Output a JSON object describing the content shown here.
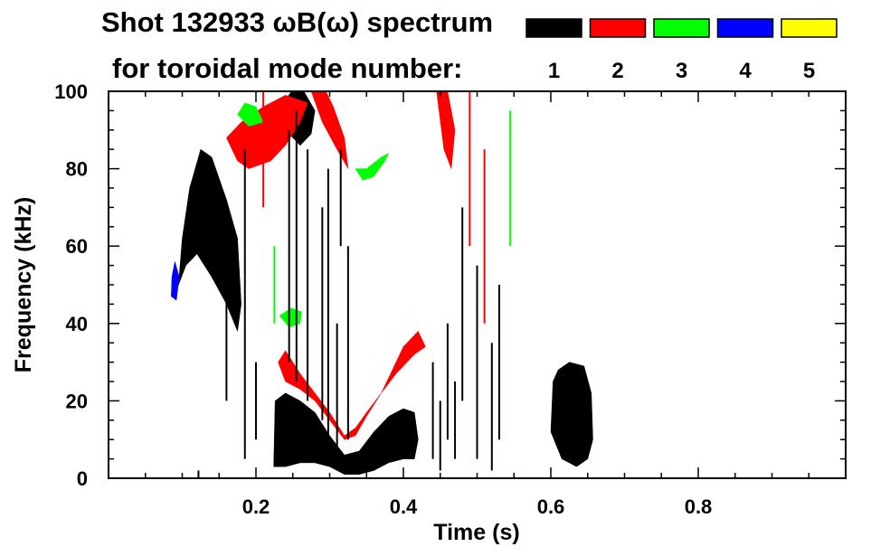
{
  "chart_data": {
    "type": "heatmap",
    "title_line1": "Shot 132933 ωB(ω) spectrum",
    "title_line2": "for toroidal mode number:",
    "xlabel": "Time (s)",
    "ylabel": "Frequency (kHz)",
    "xlim": [
      0,
      1.0
    ],
    "ylim": [
      0,
      100
    ],
    "x_ticks": [
      {
        "value": 0.2,
        "label": "0.2"
      },
      {
        "value": 0.4,
        "label": "0.4"
      },
      {
        "value": 0.6,
        "label": "0.6"
      },
      {
        "value": 0.8,
        "label": "0.8"
      }
    ],
    "y_ticks": [
      {
        "value": 0,
        "label": "0"
      },
      {
        "value": 20,
        "label": "20"
      },
      {
        "value": 40,
        "label": "40"
      },
      {
        "value": 60,
        "label": "60"
      },
      {
        "value": 80,
        "label": "80"
      },
      {
        "value": 100,
        "label": "100"
      }
    ],
    "legend": {
      "placement": "top-right",
      "entries": [
        {
          "label": "1",
          "color": "#000000"
        },
        {
          "label": "2",
          "color": "#ff0000"
        },
        {
          "label": "3",
          "color": "#00ff00"
        },
        {
          "label": "4",
          "color": "#0000ff"
        },
        {
          "label": "5",
          "color": "#ffff00"
        }
      ]
    },
    "regions": [
      {
        "mode": 1,
        "points": [
          [
            0.095,
            50
          ],
          [
            0.1,
            62
          ],
          [
            0.11,
            75
          ],
          [
            0.125,
            85
          ],
          [
            0.14,
            83
          ],
          [
            0.16,
            72
          ],
          [
            0.175,
            62
          ],
          [
            0.18,
            45
          ],
          [
            0.175,
            38
          ],
          [
            0.16,
            45
          ],
          [
            0.14,
            52
          ],
          [
            0.12,
            58
          ],
          [
            0.105,
            55
          ]
        ]
      },
      {
        "mode": 1,
        "points": [
          [
            0.224,
            3
          ],
          [
            0.226,
            20
          ],
          [
            0.24,
            22
          ],
          [
            0.26,
            20
          ],
          [
            0.28,
            17
          ],
          [
            0.3,
            11
          ],
          [
            0.32,
            6
          ],
          [
            0.34,
            7
          ],
          [
            0.36,
            12
          ],
          [
            0.38,
            16
          ],
          [
            0.4,
            18
          ],
          [
            0.415,
            17
          ],
          [
            0.42,
            10
          ],
          [
            0.415,
            5
          ],
          [
            0.4,
            5
          ],
          [
            0.38,
            4
          ],
          [
            0.36,
            2
          ],
          [
            0.34,
            1
          ],
          [
            0.32,
            1
          ],
          [
            0.3,
            3
          ],
          [
            0.28,
            4
          ],
          [
            0.26,
            4
          ],
          [
            0.24,
            3
          ]
        ]
      },
      {
        "mode": 1,
        "points": [
          [
            0.238,
            97
          ],
          [
            0.24,
            90
          ],
          [
            0.26,
            86
          ],
          [
            0.275,
            89
          ],
          [
            0.28,
            95
          ],
          [
            0.265,
            100
          ],
          [
            0.248,
            100
          ]
        ]
      },
      {
        "mode": 1,
        "points": [
          [
            0.6,
            12
          ],
          [
            0.603,
            25
          ],
          [
            0.61,
            28
          ],
          [
            0.625,
            30
          ],
          [
            0.645,
            29
          ],
          [
            0.655,
            22
          ],
          [
            0.657,
            10
          ],
          [
            0.65,
            5
          ],
          [
            0.635,
            3
          ],
          [
            0.615,
            5
          ]
        ]
      },
      {
        "mode": 2,
        "points": [
          [
            0.23,
            30
          ],
          [
            0.24,
            25
          ],
          [
            0.26,
            23
          ],
          [
            0.28,
            20
          ],
          [
            0.3,
            15
          ],
          [
            0.32,
            10
          ],
          [
            0.335,
            11
          ],
          [
            0.35,
            16
          ],
          [
            0.37,
            22
          ],
          [
            0.385,
            28
          ],
          [
            0.4,
            34
          ],
          [
            0.42,
            38
          ],
          [
            0.43,
            34
          ],
          [
            0.415,
            32
          ],
          [
            0.39,
            27
          ],
          [
            0.37,
            22
          ],
          [
            0.35,
            17
          ],
          [
            0.335,
            13
          ],
          [
            0.32,
            11
          ],
          [
            0.3,
            17
          ],
          [
            0.28,
            22
          ],
          [
            0.26,
            27
          ],
          [
            0.24,
            33
          ]
        ]
      },
      {
        "mode": 2,
        "points": [
          [
            0.16,
            88
          ],
          [
            0.175,
            82
          ],
          [
            0.19,
            80
          ],
          [
            0.22,
            82
          ],
          [
            0.24,
            86
          ],
          [
            0.26,
            92
          ],
          [
            0.27,
            97
          ],
          [
            0.24,
            99
          ],
          [
            0.21,
            96
          ],
          [
            0.18,
            92
          ]
        ]
      },
      {
        "mode": 2,
        "points": [
          [
            0.275,
            100
          ],
          [
            0.29,
            92
          ],
          [
            0.31,
            85
          ],
          [
            0.325,
            80
          ],
          [
            0.32,
            88
          ],
          [
            0.305,
            96
          ],
          [
            0.295,
            100
          ]
        ]
      },
      {
        "mode": 2,
        "points": [
          [
            0.445,
            100
          ],
          [
            0.455,
            85
          ],
          [
            0.465,
            80
          ],
          [
            0.47,
            90
          ],
          [
            0.46,
            100
          ]
        ]
      },
      {
        "mode": 3,
        "points": [
          [
            0.335,
            80
          ],
          [
            0.345,
            77
          ],
          [
            0.36,
            78
          ],
          [
            0.375,
            82
          ],
          [
            0.38,
            84
          ],
          [
            0.37,
            83
          ],
          [
            0.35,
            80
          ]
        ]
      },
      {
        "mode": 3,
        "points": [
          [
            0.232,
            42
          ],
          [
            0.245,
            39
          ],
          [
            0.26,
            40
          ],
          [
            0.262,
            43
          ],
          [
            0.248,
            44
          ]
        ]
      },
      {
        "mode": 3,
        "points": [
          [
            0.175,
            94
          ],
          [
            0.19,
            91
          ],
          [
            0.21,
            92
          ],
          [
            0.2,
            96
          ],
          [
            0.185,
            97
          ]
        ]
      },
      {
        "mode": 4,
        "points": [
          [
            0.085,
            47
          ],
          [
            0.092,
            46
          ],
          [
            0.096,
            52
          ],
          [
            0.09,
            56
          ],
          [
            0.086,
            52
          ]
        ]
      }
    ],
    "streaks": [
      {
        "mode": 1,
        "x": 0.122,
        "y0": 0,
        "y1": 2
      },
      {
        "mode": 1,
        "x": 0.16,
        "y0": 20,
        "y1": 60
      },
      {
        "mode": 1,
        "x": 0.185,
        "y0": 5,
        "y1": 85
      },
      {
        "mode": 1,
        "x": 0.2,
        "y0": 10,
        "y1": 30
      },
      {
        "mode": 1,
        "x": 0.245,
        "y0": 30,
        "y1": 90
      },
      {
        "mode": 1,
        "x": 0.255,
        "y0": 25,
        "y1": 95
      },
      {
        "mode": 1,
        "x": 0.27,
        "y0": 20,
        "y1": 85
      },
      {
        "mode": 1,
        "x": 0.29,
        "y0": 15,
        "y1": 70
      },
      {
        "mode": 1,
        "x": 0.298,
        "y0": 10,
        "y1": 80
      },
      {
        "mode": 1,
        "x": 0.31,
        "y0": 5,
        "y1": 40
      },
      {
        "mode": 1,
        "x": 0.315,
        "y0": 60,
        "y1": 85
      },
      {
        "mode": 1,
        "x": 0.325,
        "y0": 10,
        "y1": 60
      },
      {
        "mode": 1,
        "x": 0.44,
        "y0": 5,
        "y1": 30
      },
      {
        "mode": 1,
        "x": 0.45,
        "y0": 2,
        "y1": 20
      },
      {
        "mode": 1,
        "x": 0.46,
        "y0": 10,
        "y1": 40
      },
      {
        "mode": 1,
        "x": 0.47,
        "y0": 5,
        "y1": 25
      },
      {
        "mode": 1,
        "x": 0.48,
        "y0": 20,
        "y1": 70
      },
      {
        "mode": 1,
        "x": 0.5,
        "y0": 5,
        "y1": 55
      },
      {
        "mode": 1,
        "x": 0.52,
        "y0": 2,
        "y1": 35
      },
      {
        "mode": 1,
        "x": 0.53,
        "y0": 10,
        "y1": 50
      },
      {
        "mode": 2,
        "x": 0.21,
        "y0": 70,
        "y1": 100
      },
      {
        "mode": 2,
        "x": 0.49,
        "y0": 60,
        "y1": 100
      },
      {
        "mode": 2,
        "x": 0.51,
        "y0": 40,
        "y1": 85
      },
      {
        "mode": 3,
        "x": 0.225,
        "y0": 40,
        "y1": 60
      },
      {
        "mode": 3,
        "x": 0.545,
        "y0": 60,
        "y1": 95
      }
    ]
  }
}
